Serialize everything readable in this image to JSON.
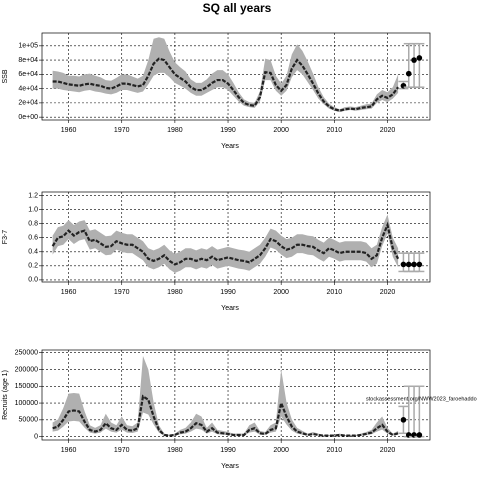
{
  "title": "SQ all years",
  "chart_data": [
    {
      "type": "line",
      "ylabel": "SSB",
      "xlabel": "Years",
      "x": [
        1957,
        1958,
        1959,
        1960,
        1961,
        1962,
        1963,
        1964,
        1965,
        1966,
        1967,
        1968,
        1969,
        1970,
        1971,
        1972,
        1973,
        1974,
        1975,
        1976,
        1977,
        1978,
        1979,
        1980,
        1981,
        1982,
        1983,
        1984,
        1985,
        1986,
        1987,
        1988,
        1989,
        1990,
        1991,
        1992,
        1993,
        1994,
        1995,
        1996,
        1997,
        1998,
        1999,
        2000,
        2001,
        2002,
        2003,
        2004,
        2005,
        2006,
        2007,
        2008,
        2009,
        2010,
        2011,
        2012,
        2013,
        2014,
        2015,
        2016,
        2017,
        2018,
        2019,
        2020,
        2021,
        2022
      ],
      "values": [
        50000,
        50000,
        48000,
        46000,
        45000,
        44000,
        46000,
        47000,
        45000,
        44000,
        41000,
        40000,
        43000,
        47000,
        47000,
        45000,
        43000,
        45000,
        58000,
        75000,
        82000,
        80000,
        70000,
        60000,
        55000,
        50000,
        42000,
        38000,
        38000,
        42000,
        48000,
        52000,
        52000,
        47000,
        38000,
        28000,
        20000,
        17000,
        16000,
        28000,
        63000,
        62000,
        45000,
        37000,
        45000,
        68000,
        80000,
        72000,
        60000,
        47000,
        33000,
        22000,
        15000,
        11000,
        9000,
        11000,
        12000,
        11000,
        13000,
        14000,
        15000,
        25000,
        30000,
        27000,
        32000,
        42000
      ],
      "low": [
        40000,
        40000,
        38000,
        37000,
        36000,
        35000,
        37000,
        38000,
        36000,
        35000,
        33000,
        32000,
        34000,
        38000,
        38000,
        36000,
        34000,
        36000,
        46000,
        58000,
        62000,
        62000,
        56000,
        48000,
        44000,
        40000,
        34000,
        30000,
        30000,
        34000,
        38000,
        42000,
        42000,
        38000,
        30000,
        22000,
        16000,
        14000,
        13000,
        22000,
        52000,
        52000,
        37000,
        30000,
        37000,
        56000,
        66000,
        60000,
        49000,
        38000,
        26000,
        18000,
        12000,
        9000,
        7000,
        9000,
        10000,
        9000,
        10000,
        11000,
        12000,
        20000,
        24000,
        21000,
        26000,
        34000
      ],
      "high": [
        65000,
        64000,
        62000,
        58000,
        58000,
        57000,
        60000,
        61000,
        58000,
        56000,
        52000,
        51000,
        55000,
        60000,
        60000,
        57000,
        54000,
        58000,
        80000,
        110000,
        112000,
        110000,
        92000,
        77000,
        70000,
        64000,
        53000,
        48000,
        48000,
        53000,
        61000,
        66000,
        66000,
        60000,
        48000,
        35000,
        25000,
        21000,
        20000,
        36000,
        82000,
        80000,
        58000,
        47000,
        58000,
        88000,
        102000,
        93000,
        78000,
        61000,
        42000,
        28000,
        19000,
        14000,
        11000,
        14000,
        15000,
        14000,
        16000,
        18000,
        19000,
        32000,
        38000,
        35000,
        42000,
        60000
      ],
      "forecast_x": [
        2023,
        2024,
        2025,
        2026
      ],
      "forecast_values": [
        44000,
        61000,
        80000,
        83000
      ],
      "forecast_low": [
        40000,
        42000,
        42000,
        42000
      ],
      "forecast_high": [
        50000,
        103000,
        103000,
        103000
      ],
      "xlim": [
        1955,
        2028
      ],
      "xticks": [
        1960,
        1970,
        1980,
        1990,
        2000,
        2010,
        2020
      ],
      "ylim": [
        -4000,
        118000
      ],
      "yticks": [
        {
          "value": 0,
          "label": "0e+00"
        },
        {
          "value": 20000,
          "label": "2e+04"
        },
        {
          "value": 40000,
          "label": "4e+04"
        },
        {
          "value": 60000,
          "label": "6e+04"
        },
        {
          "value": 80000,
          "label": "8e+04"
        },
        {
          "value": 100000,
          "label": "1e+05"
        }
      ],
      "grid": true,
      "band_color": "#b0b0b0",
      "line_color": "#222222",
      "bar_color": "#aaaaaa"
    },
    {
      "type": "line",
      "ylabel": "F3-7",
      "xlabel": "Years",
      "x": [
        1957,
        1958,
        1959,
        1960,
        1961,
        1962,
        1963,
        1964,
        1965,
        1966,
        1967,
        1968,
        1969,
        1970,
        1971,
        1972,
        1973,
        1974,
        1975,
        1976,
        1977,
        1978,
        1979,
        1980,
        1981,
        1982,
        1983,
        1984,
        1985,
        1986,
        1987,
        1988,
        1989,
        1990,
        1991,
        1992,
        1993,
        1994,
        1995,
        1996,
        1997,
        1998,
        1999,
        2000,
        2001,
        2002,
        2003,
        2004,
        2005,
        2006,
        2007,
        2008,
        2009,
        2010,
        2011,
        2012,
        2013,
        2014,
        2015,
        2016,
        2017,
        2018,
        2019,
        2020,
        2021,
        2022
      ],
      "values": [
        0.48,
        0.6,
        0.62,
        0.7,
        0.63,
        0.68,
        0.7,
        0.55,
        0.57,
        0.52,
        0.47,
        0.48,
        0.55,
        0.52,
        0.5,
        0.5,
        0.45,
        0.4,
        0.3,
        0.27,
        0.3,
        0.35,
        0.27,
        0.22,
        0.25,
        0.3,
        0.3,
        0.27,
        0.3,
        0.28,
        0.33,
        0.28,
        0.3,
        0.32,
        0.3,
        0.28,
        0.27,
        0.25,
        0.3,
        0.35,
        0.45,
        0.58,
        0.55,
        0.48,
        0.43,
        0.45,
        0.5,
        0.5,
        0.48,
        0.47,
        0.42,
        0.38,
        0.45,
        0.42,
        0.38,
        0.4,
        0.4,
        0.4,
        0.4,
        0.38,
        0.3,
        0.35,
        0.6,
        0.78,
        0.45,
        0.3
      ],
      "low": [
        0.36,
        0.48,
        0.5,
        0.58,
        0.51,
        0.56,
        0.58,
        0.43,
        0.45,
        0.4,
        0.35,
        0.36,
        0.43,
        0.4,
        0.38,
        0.38,
        0.33,
        0.28,
        0.18,
        0.15,
        0.18,
        0.23,
        0.15,
        0.1,
        0.13,
        0.18,
        0.18,
        0.15,
        0.18,
        0.16,
        0.21,
        0.16,
        0.18,
        0.2,
        0.18,
        0.16,
        0.15,
        0.13,
        0.18,
        0.23,
        0.33,
        0.46,
        0.43,
        0.36,
        0.31,
        0.33,
        0.38,
        0.38,
        0.36,
        0.35,
        0.3,
        0.26,
        0.33,
        0.3,
        0.26,
        0.28,
        0.28,
        0.28,
        0.28,
        0.26,
        0.18,
        0.23,
        0.48,
        0.66,
        0.33,
        0.18
      ],
      "high": [
        0.63,
        0.75,
        0.77,
        0.85,
        0.78,
        0.83,
        0.85,
        0.7,
        0.72,
        0.67,
        0.62,
        0.63,
        0.7,
        0.67,
        0.65,
        0.65,
        0.6,
        0.55,
        0.45,
        0.42,
        0.45,
        0.5,
        0.42,
        0.37,
        0.4,
        0.45,
        0.45,
        0.42,
        0.45,
        0.43,
        0.48,
        0.43,
        0.45,
        0.47,
        0.45,
        0.43,
        0.42,
        0.4,
        0.45,
        0.5,
        0.6,
        0.73,
        0.7,
        0.63,
        0.58,
        0.6,
        0.65,
        0.65,
        0.63,
        0.62,
        0.57,
        0.53,
        0.6,
        0.57,
        0.53,
        0.55,
        0.55,
        0.55,
        0.55,
        0.53,
        0.45,
        0.5,
        0.75,
        0.93,
        0.6,
        0.45
      ],
      "forecast_x": [
        2023,
        2024,
        2025,
        2026
      ],
      "forecast_values": [
        0.22,
        0.22,
        0.22,
        0.22
      ],
      "forecast_low": [
        0.12,
        0.12,
        0.12,
        0.12
      ],
      "forecast_high": [
        0.38,
        0.38,
        0.38,
        0.38
      ],
      "xlim": [
        1955,
        2028
      ],
      "xticks": [
        1960,
        1970,
        1980,
        1990,
        2000,
        2010,
        2020
      ],
      "ylim": [
        -0.03,
        1.25
      ],
      "yticks": [
        {
          "value": 0,
          "label": "0.0"
        },
        0.2,
        0.4,
        0.6,
        0.8,
        {
          "value": 1,
          "label": "1.0"
        },
        1.2
      ],
      "grid": true,
      "band_color": "#b0b0b0",
      "line_color": "#222222",
      "bar_color": "#aaaaaa"
    },
    {
      "type": "line",
      "ylabel": "Recruits (age 1)",
      "xlabel": "Years",
      "annotation": "stockassessment.org/NWW2023_faroehaddo",
      "x": [
        1957,
        1958,
        1959,
        1960,
        1961,
        1962,
        1963,
        1964,
        1965,
        1966,
        1967,
        1968,
        1969,
        1970,
        1971,
        1972,
        1973,
        1974,
        1975,
        1976,
        1977,
        1978,
        1979,
        1980,
        1981,
        1982,
        1983,
        1984,
        1985,
        1986,
        1987,
        1988,
        1989,
        1990,
        1991,
        1992,
        1993,
        1994,
        1995,
        1996,
        1997,
        1998,
        1999,
        2000,
        2001,
        2002,
        2003,
        2004,
        2005,
        2006,
        2007,
        2008,
        2009,
        2010,
        2011,
        2012,
        2013,
        2014,
        2015,
        2016,
        2017,
        2018,
        2019,
        2020,
        2021,
        2022
      ],
      "values": [
        25000,
        30000,
        50000,
        75000,
        78000,
        75000,
        45000,
        20000,
        15000,
        20000,
        40000,
        25000,
        20000,
        35000,
        20000,
        18000,
        25000,
        120000,
        110000,
        60000,
        20000,
        5000,
        3000,
        5000,
        12000,
        15000,
        25000,
        40000,
        35000,
        15000,
        25000,
        12000,
        10000,
        8000,
        5000,
        5000,
        5000,
        20000,
        25000,
        10000,
        8000,
        20000,
        25000,
        100000,
        60000,
        30000,
        15000,
        10000,
        5000,
        8000,
        5000,
        3000,
        3000,
        3000,
        5000,
        3000,
        3000,
        3000,
        5000,
        8000,
        12000,
        25000,
        35000,
        15000,
        5000,
        10000
      ],
      "low": [
        15000,
        18000,
        30000,
        45000,
        47000,
        45000,
        27000,
        12000,
        9000,
        12000,
        24000,
        15000,
        12000,
        21000,
        12000,
        11000,
        15000,
        72000,
        66000,
        36000,
        12000,
        3000,
        2000,
        3000,
        7000,
        9000,
        15000,
        24000,
        21000,
        9000,
        15000,
        7000,
        6000,
        5000,
        3000,
        3000,
        3000,
        12000,
        15000,
        6000,
        5000,
        12000,
        15000,
        60000,
        36000,
        18000,
        9000,
        6000,
        3000,
        5000,
        3000,
        2000,
        2000,
        2000,
        3000,
        2000,
        2000,
        2000,
        3000,
        5000,
        7000,
        15000,
        21000,
        9000,
        3000,
        6000
      ],
      "high": [
        42000,
        51000,
        85000,
        128000,
        130000,
        128000,
        76000,
        34000,
        26000,
        34000,
        68000,
        42000,
        34000,
        60000,
        34000,
        31000,
        42000,
        240000,
        200000,
        102000,
        34000,
        9000,
        5000,
        9000,
        20000,
        26000,
        42000,
        68000,
        60000,
        26000,
        42000,
        20000,
        17000,
        14000,
        9000,
        9000,
        9000,
        34000,
        42000,
        17000,
        14000,
        34000,
        42000,
        200000,
        102000,
        51000,
        26000,
        17000,
        9000,
        14000,
        9000,
        5000,
        5000,
        5000,
        9000,
        5000,
        5000,
        5000,
        9000,
        14000,
        20000,
        42000,
        60000,
        26000,
        9000,
        17000
      ],
      "forecast_x": [
        2023,
        2024,
        2025,
        2026
      ],
      "forecast_values": [
        50000,
        5000,
        5000,
        5000
      ],
      "forecast_low": [
        10000,
        0,
        0,
        0
      ],
      "forecast_high": [
        90000,
        150000,
        150000,
        150000
      ],
      "xlim": [
        1955,
        2028
      ],
      "xticks": [
        1960,
        1970,
        1980,
        1990,
        2000,
        2010,
        2020
      ],
      "ylim": [
        -10000,
        258000
      ],
      "yticks": [
        0,
        50000,
        100000,
        150000,
        200000,
        250000
      ],
      "grid": true,
      "band_color": "#b0b0b0",
      "line_color": "#222222",
      "bar_color": "#aaaaaa"
    }
  ]
}
